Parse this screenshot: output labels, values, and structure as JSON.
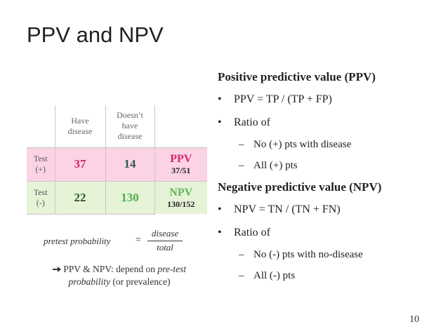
{
  "title": "PPV and NPV",
  "table": {
    "header": [
      "Have disease",
      "Doesn’t have disease"
    ],
    "rows": [
      {
        "label": "Test (+)",
        "cells": [
          "37",
          "14"
        ],
        "result": "PPV",
        "fraction": "37/51"
      },
      {
        "label": "Test (-)",
        "cells": [
          "22",
          "130"
        ],
        "result": "NPV",
        "fraction": "130/152"
      }
    ]
  },
  "formula": {
    "left": "pretest probability",
    "equals": "=",
    "numerator": "disease",
    "denominator": "total"
  },
  "note": {
    "text": "PPV & NPV: depend on ",
    "italic": "pre-test probability",
    "rest": " (or prevalence)"
  },
  "sections": [
    {
      "heading": "Positive predictive value (PPV)",
      "bullets": [
        {
          "text": "PPV = TP /  (TP + FP)",
          "sub": []
        },
        {
          "text": "Ratio of",
          "sub": [
            "No (+) pts with disease",
            "All (+) pts"
          ]
        }
      ]
    },
    {
      "heading": "Negative predictive value (NPV)",
      "bullets": [
        {
          "text": "NPV = TN /  (TN + FN)",
          "sub": []
        },
        {
          "text": "Ratio of",
          "sub": [
            "No (-) pts with no-disease",
            "All (-) pts"
          ]
        }
      ]
    }
  ],
  "page_number": "10"
}
